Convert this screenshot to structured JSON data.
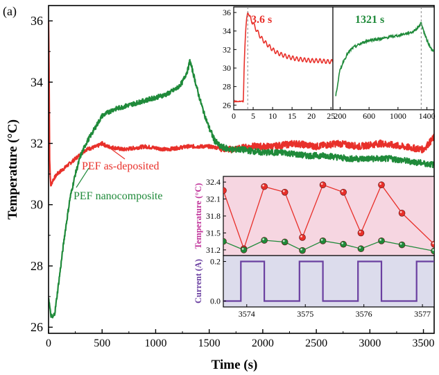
{
  "panel_label": "(a)",
  "colors": {
    "red": "#e8302a",
    "green": "#1f8a3a",
    "purple": "#6a3fa0",
    "magenta": "#c0339a",
    "pink_bg": "#f6d6e1",
    "lav_bg": "#dcdcec"
  },
  "chart_data": [
    {
      "id": "main",
      "type": "line",
      "xlabel": "Time (s)",
      "ylabel": "Temperature (°C)",
      "xlim": [
        0,
        3600
      ],
      "ylim": [
        25.8,
        36.5
      ],
      "xticks": [
        0,
        500,
        1000,
        1500,
        2000,
        2500,
        3000,
        3500
      ],
      "yticks": [
        26,
        28,
        30,
        32,
        34,
        36
      ],
      "annotations": [
        "PEF as-deposited",
        "PEF nanocomposite"
      ],
      "series": [
        {
          "name": "PEF as-deposited",
          "color": "#e8302a",
          "x": [
            0,
            5,
            10,
            20,
            40,
            80,
            150,
            250,
            350,
            450,
            500,
            550,
            700,
            900,
            1100,
            1300,
            1500,
            1700,
            1900,
            2100,
            2300,
            2500,
            2700,
            2900,
            3100,
            3300,
            3500,
            3600
          ],
          "y": [
            36.0,
            34.5,
            31.5,
            30.6,
            30.8,
            31.0,
            31.2,
            31.5,
            31.8,
            31.9,
            32.0,
            31.9,
            31.8,
            31.9,
            31.8,
            31.9,
            31.9,
            31.8,
            31.9,
            31.9,
            32.0,
            31.9,
            32.0,
            31.9,
            32.0,
            31.9,
            31.8,
            32.2
          ]
        },
        {
          "name": "PEF nanocomposite",
          "color": "#1f8a3a",
          "x": [
            0,
            10,
            20,
            40,
            60,
            100,
            150,
            200,
            250,
            300,
            350,
            400,
            450,
            500,
            600,
            700,
            800,
            900,
            1000,
            1100,
            1200,
            1250,
            1300,
            1320,
            1350,
            1400,
            1450,
            1500,
            1550,
            1600,
            1700,
            1800,
            2000,
            2200,
            2400,
            2600,
            2800,
            3000,
            3200,
            3400,
            3600
          ],
          "y": [
            27.0,
            26.7,
            26.4,
            26.3,
            26.5,
            27.6,
            29.0,
            30.2,
            31.0,
            31.6,
            32.0,
            32.3,
            32.6,
            32.9,
            33.1,
            33.2,
            33.3,
            33.4,
            33.5,
            33.6,
            33.8,
            34.0,
            34.4,
            34.7,
            34.3,
            33.6,
            33.0,
            32.5,
            32.1,
            31.9,
            31.8,
            31.8,
            31.7,
            31.7,
            31.6,
            31.6,
            31.5,
            31.5,
            31.5,
            31.4,
            31.3
          ]
        }
      ]
    },
    {
      "id": "inset_left",
      "type": "line",
      "xlim": [
        0,
        25.5
      ],
      "ylim": [
        25.5,
        36.6
      ],
      "xticks": [
        0,
        5,
        10,
        15,
        20,
        25
      ],
      "yticks": [
        26,
        28,
        30,
        32,
        34,
        36
      ],
      "annotation": "3.6 s",
      "marker_x": 3.6,
      "series": [
        {
          "name": "",
          "color": "#e8302a",
          "x": [
            0,
            2.5,
            2.6,
            2.8,
            3.0,
            3.2,
            3.4,
            3.6,
            4.0,
            4.5,
            5,
            6,
            7,
            8,
            9,
            10,
            11,
            12,
            14,
            16,
            18,
            20,
            22,
            24,
            25.5
          ],
          "y": [
            26.4,
            26.4,
            29.0,
            31.5,
            33.5,
            34.8,
            35.6,
            36.0,
            35.6,
            35.2,
            34.8,
            34.0,
            33.3,
            32.8,
            32.4,
            32.0,
            31.7,
            31.5,
            31.2,
            31.0,
            30.9,
            30.8,
            30.8,
            30.7,
            30.7
          ]
        }
      ]
    },
    {
      "id": "inset_right",
      "type": "line",
      "xlim": [
        100,
        1500
      ],
      "ylim": [
        25.5,
        36.6
      ],
      "xticks": [
        200,
        600,
        1000,
        1400
      ],
      "annotation": "1321 s",
      "marker_x": 1321,
      "series": [
        {
          "name": "",
          "color": "#1f8a3a",
          "x": [
            140,
            160,
            180,
            200,
            250,
            300,
            350,
            400,
            500,
            600,
            700,
            800,
            900,
            1000,
            1100,
            1200,
            1250,
            1300,
            1321,
            1350,
            1400,
            1450,
            1500
          ],
          "y": [
            27.0,
            28.0,
            29.0,
            29.8,
            30.8,
            31.5,
            32.0,
            32.3,
            32.7,
            33.0,
            33.1,
            33.2,
            33.4,
            33.5,
            33.7,
            33.9,
            34.2,
            34.6,
            34.9,
            34.1,
            33.0,
            32.2,
            31.8
          ]
        }
      ]
    },
    {
      "id": "inset_temp",
      "type": "line",
      "ylabel": "Temperature (°C)",
      "xlim": [
        3573.6,
        3577.2
      ],
      "ylim": [
        31.1,
        32.5
      ],
      "yticks": [
        31.2,
        31.5,
        31.8,
        32.1,
        32.4
      ],
      "series": [
        {
          "name": "PEF as-deposited",
          "color": "#e8302a",
          "x": [
            3573.6,
            3573.95,
            3574.3,
            3574.65,
            3574.95,
            3575.3,
            3575.65,
            3575.95,
            3576.3,
            3576.65,
            3577.2
          ],
          "y": [
            32.25,
            31.22,
            32.32,
            32.22,
            31.42,
            32.35,
            32.22,
            31.5,
            32.35,
            31.85,
            31.3
          ]
        },
        {
          "name": "PEF nanocomposite",
          "color": "#1f8a3a",
          "x": [
            3573.6,
            3573.95,
            3574.3,
            3574.65,
            3574.95,
            3575.3,
            3575.65,
            3575.95,
            3576.3,
            3576.65,
            3577.2
          ],
          "y": [
            31.35,
            31.2,
            31.37,
            31.34,
            31.19,
            31.36,
            31.3,
            31.22,
            31.36,
            31.29,
            31.18
          ]
        }
      ]
    },
    {
      "id": "inset_current",
      "type": "line",
      "ylabel": "Current (A)",
      "xlim": [
        3573.6,
        3577.2
      ],
      "ylim": [
        -0.03,
        0.23
      ],
      "xticks": [
        3574,
        3575,
        3576,
        3577
      ],
      "yticks": [
        0.0,
        0.2
      ],
      "tick_labels": [
        "0.0",
        "0.2"
      ],
      "series": [
        {
          "name": "",
          "color": "#6a3fa0",
          "x": [
            3573.6,
            3573.9,
            3573.9,
            3574.3,
            3574.3,
            3574.9,
            3574.9,
            3575.3,
            3575.3,
            3575.9,
            3575.9,
            3576.3,
            3576.3,
            3576.9,
            3576.9,
            3577.2
          ],
          "y": [
            0,
            0,
            0.2,
            0.2,
            0,
            0,
            0.2,
            0.2,
            0,
            0,
            0.2,
            0.2,
            0,
            0,
            0.2,
            0.2
          ]
        }
      ]
    }
  ]
}
